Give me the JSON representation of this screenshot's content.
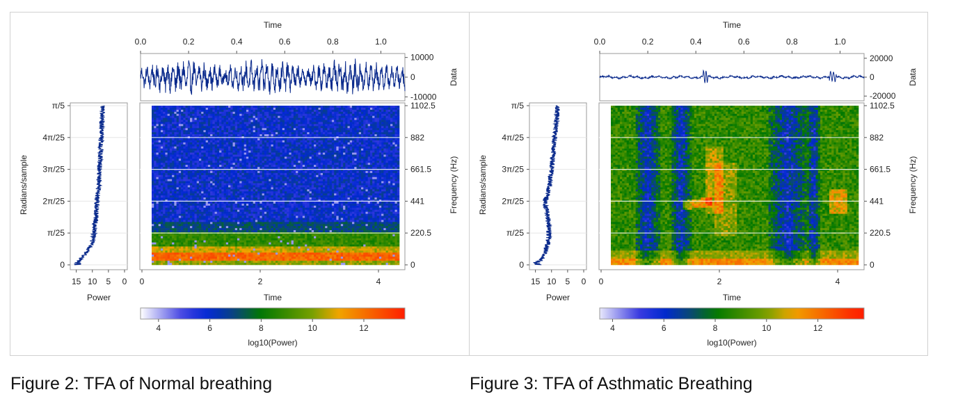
{
  "chart_data": [
    {
      "type": "heatmap",
      "caption": "Figure 2: TFA of Normal breathing",
      "time_axis": {
        "label": "Time",
        "range": [
          0.0,
          1.1
        ],
        "ticks": [
          "0.0",
          "0.2",
          "0.4",
          "0.6",
          "0.8",
          "1.0"
        ]
      },
      "data_axis": {
        "label": "Data",
        "range": [
          -12000,
          12000
        ],
        "ticks": [
          "10000",
          "0",
          "-10000"
        ]
      },
      "frequency_axis": {
        "label": "Frequency (Hz)",
        "range": [
          0,
          1102.5
        ],
        "ticks": [
          "0",
          "220.5",
          "441",
          "661.5",
          "882",
          "1102.5"
        ]
      },
      "radians_axis": {
        "label": "Radians/sample",
        "ticks": [
          "0",
          "π/25",
          "2π/25",
          "3π/25",
          "4π/25",
          "π/5"
        ]
      },
      "power_axis": {
        "label": "Power",
        "range": [
          16,
          0
        ],
        "ticks": [
          "15",
          "10",
          "5",
          "0"
        ]
      },
      "spectrogram_time_axis": {
        "label": "Time",
        "range": [
          0,
          4.4
        ],
        "ticks": [
          "0",
          "2",
          "4"
        ]
      },
      "colorbar": {
        "label": "log10(Power)",
        "range": [
          3.3,
          13.6
        ],
        "ticks": [
          "4",
          "6",
          "8",
          "10",
          "12"
        ]
      },
      "profile": "normal",
      "power_profile": {
        "frequency": [
          0,
          20,
          40,
          80,
          120,
          160,
          220.5,
          300,
          441,
          550,
          661.5,
          770,
          882,
          1000,
          1102.5
        ],
        "power": [
          14.5,
          14.8,
          13.5,
          12.0,
          10.8,
          10.0,
          9.5,
          9.0,
          8.5,
          8.0,
          7.8,
          7.5,
          7.2,
          7.0,
          6.8
        ]
      },
      "data_signal": {
        "amplitude": 8000
      }
    },
    {
      "type": "heatmap",
      "caption": "Figure 3: TFA of Asthmatic Breathing",
      "time_axis": {
        "label": "Time",
        "range": [
          0.0,
          1.1
        ],
        "ticks": [
          "0.0",
          "0.2",
          "0.4",
          "0.6",
          "0.8",
          "1.0"
        ]
      },
      "data_axis": {
        "label": "Data",
        "range": [
          -25000,
          25000
        ],
        "ticks": [
          "20000",
          "0",
          "-20000"
        ]
      },
      "frequency_axis": {
        "label": "Frequency (Hz)",
        "range": [
          0,
          1102.5
        ],
        "ticks": [
          "0",
          "220.5",
          "441",
          "661.5",
          "882",
          "1102.5"
        ]
      },
      "radians_axis": {
        "label": "Radians/sample",
        "ticks": [
          "0",
          "π/25",
          "2π/25",
          "3π/25",
          "4π/25",
          "π/5"
        ]
      },
      "power_axis": {
        "label": "Power",
        "range": [
          16,
          0
        ],
        "ticks": [
          "15",
          "10",
          "5",
          "0"
        ]
      },
      "spectrogram_time_axis": {
        "label": "Time",
        "range": [
          0,
          4.4
        ],
        "ticks": [
          "0",
          "2",
          "4"
        ]
      },
      "colorbar": {
        "label": "log10(Power)",
        "range": [
          3.5,
          13.8
        ],
        "ticks": [
          "4",
          "6",
          "8",
          "10",
          "12"
        ]
      },
      "profile": "asthmatic",
      "power_profile": {
        "frequency": [
          0,
          20,
          40,
          80,
          120,
          160,
          220.5,
          300,
          441,
          550,
          661.5,
          770,
          882,
          1000,
          1102.5
        ],
        "power": [
          14.0,
          14.5,
          13.0,
          12.0,
          11.5,
          11.0,
          10.8,
          11.0,
          12.0,
          10.5,
          10.0,
          9.5,
          9.0,
          8.5,
          8.0
        ]
      },
      "data_signal": {
        "amplitude": 3000
      }
    }
  ]
}
